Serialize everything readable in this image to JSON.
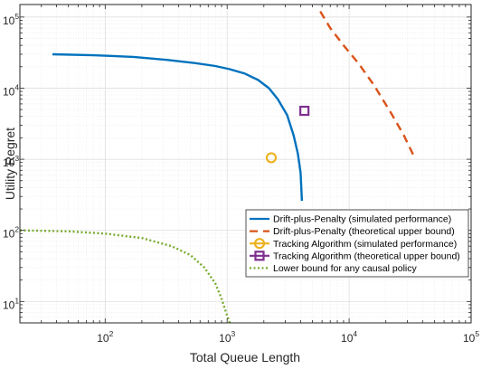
{
  "chart_data": {
    "type": "line",
    "xlabel": "Total Queue Length",
    "ylabel": "Utility Regret",
    "xscale": "log",
    "yscale": "log",
    "xlim": [
      20,
      100000
    ],
    "ylim": [
      5,
      150000
    ],
    "grid": true,
    "legend_position": "lower-right",
    "x_ticks": [
      {
        "base": "10",
        "exp": "2",
        "value": 100
      },
      {
        "base": "10",
        "exp": "3",
        "value": 1000
      },
      {
        "base": "10",
        "exp": "4",
        "value": 10000
      },
      {
        "base": "10",
        "exp": "5",
        "value": 100000
      }
    ],
    "y_ticks": [
      {
        "base": "10",
        "exp": "1",
        "value": 10
      },
      {
        "base": "10",
        "exp": "2",
        "value": 100
      },
      {
        "base": "10",
        "exp": "3",
        "value": 1000
      },
      {
        "base": "10",
        "exp": "4",
        "value": 10000
      },
      {
        "base": "10",
        "exp": "5",
        "value": 100000
      }
    ],
    "series": [
      {
        "name": "Drift-plus-Penalty (simulated performance)",
        "color": "#0072BD",
        "style": "solid",
        "marker": "none",
        "points": [
          [
            37,
            30000
          ],
          [
            80,
            29000
          ],
          [
            170,
            27500
          ],
          [
            320,
            25000
          ],
          [
            550,
            22500
          ],
          [
            800,
            20500
          ],
          [
            1050,
            18500
          ],
          [
            1400,
            16000
          ],
          [
            1800,
            13000
          ],
          [
            2200,
            10000
          ],
          [
            2600,
            7000
          ],
          [
            3100,
            4200
          ],
          [
            3500,
            2200
          ],
          [
            3800,
            1200
          ],
          [
            4000,
            650
          ],
          [
            4100,
            260
          ]
        ]
      },
      {
        "name": "Drift-plus-Penalty (theoretical upper bound)",
        "color": "#D95319",
        "style": "dashed",
        "marker": "none",
        "points": [
          [
            5800,
            120000
          ],
          [
            7000,
            70000
          ],
          [
            9000,
            40000
          ],
          [
            12000,
            22000
          ],
          [
            16000,
            11000
          ],
          [
            22000,
            4500
          ],
          [
            28000,
            2200
          ],
          [
            34000,
            1100
          ]
        ]
      },
      {
        "name": "Tracking Algorithm (simulated performance)",
        "color": "#EDB120",
        "style": "solid",
        "marker": "circle",
        "points": [
          [
            2300,
            1050
          ]
        ]
      },
      {
        "name": "Tracking Algorithm (theoretical upper bound)",
        "color": "#7E2F8E",
        "style": "solid",
        "marker": "square",
        "points": [
          [
            4300,
            4800
          ]
        ]
      },
      {
        "name": "Lower bound for any causal policy",
        "color": "#77AC30",
        "style": "dotted",
        "marker": "none",
        "points": [
          [
            20,
            100
          ],
          [
            50,
            97
          ],
          [
            100,
            90
          ],
          [
            200,
            78
          ],
          [
            350,
            60
          ],
          [
            500,
            45
          ],
          [
            650,
            30
          ],
          [
            800,
            18
          ],
          [
            900,
            11
          ],
          [
            980,
            7
          ],
          [
            1050,
            5
          ]
        ]
      }
    ]
  }
}
